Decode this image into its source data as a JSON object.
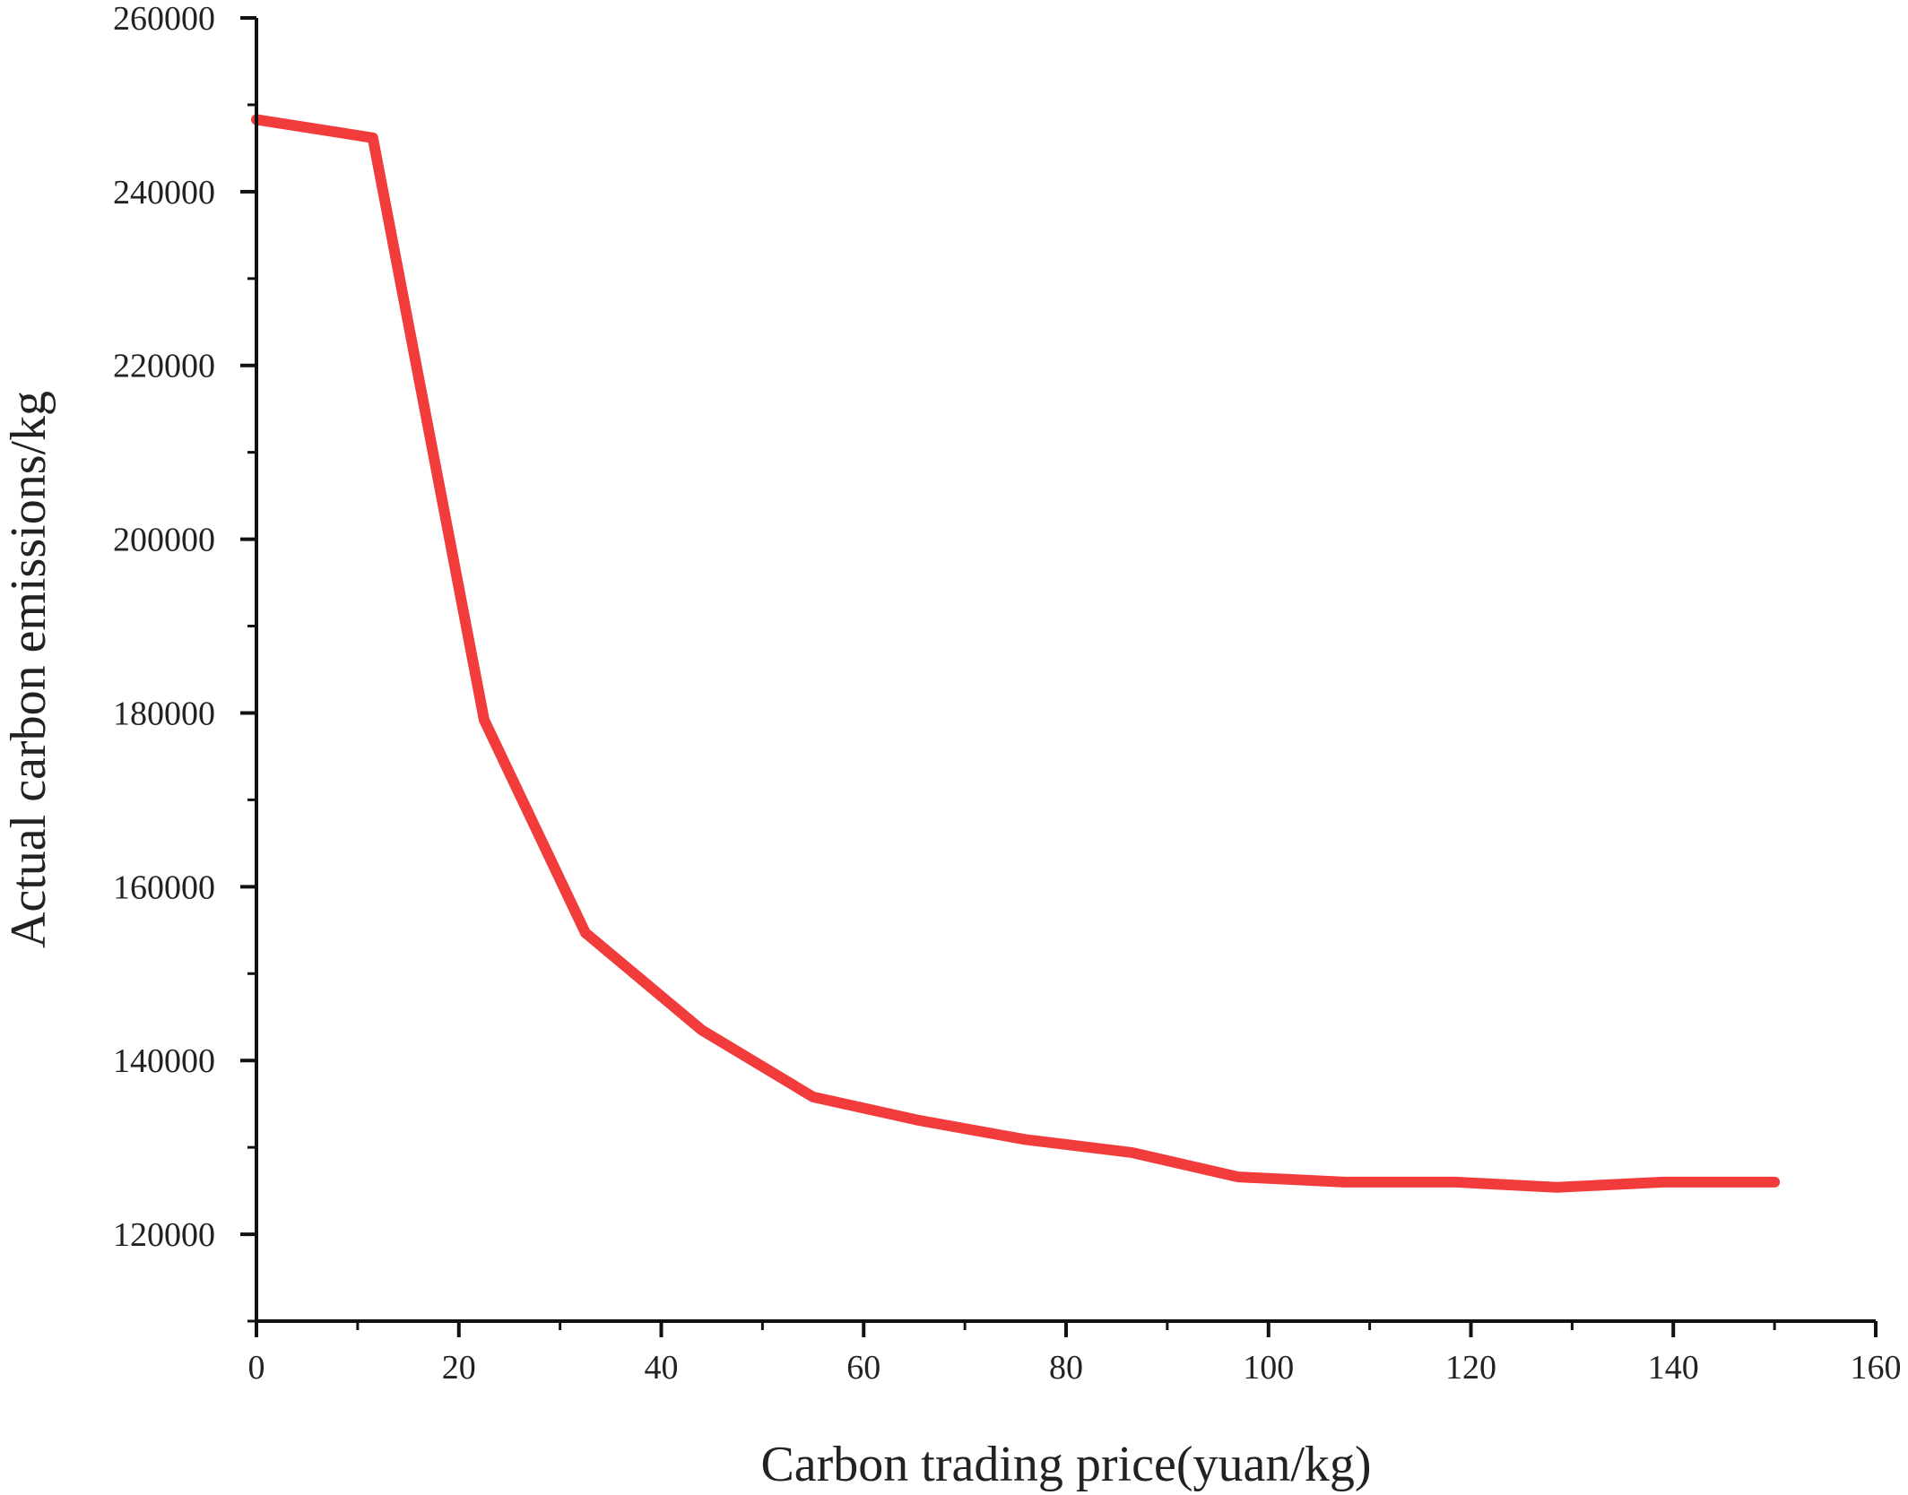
{
  "chart_data": {
    "type": "line",
    "title": "",
    "xlabel": "Carbon trading price(yuan/kg)",
    "ylabel": "Actual carbon emissions/kg",
    "xlim": [
      0,
      160
    ],
    "ylim": [
      110000,
      260000
    ],
    "x_major_ticks": [
      0,
      20,
      40,
      60,
      80,
      100,
      120,
      140,
      160
    ],
    "x_minor_ticks": [
      10,
      30,
      50,
      70,
      90,
      110,
      130,
      150
    ],
    "x_tick_labels": [
      "0",
      "20",
      "40",
      "60",
      "80",
      "100",
      "120",
      "140",
      "160"
    ],
    "y_major_ticks": [
      120000,
      140000,
      160000,
      180000,
      200000,
      220000,
      240000,
      260000
    ],
    "y_minor_ticks": [
      110000,
      130000,
      150000,
      170000,
      190000,
      210000,
      230000,
      250000
    ],
    "y_tick_labels": [
      "120000",
      "140000",
      "160000",
      "180000",
      "200000",
      "220000",
      "240000",
      "260000"
    ],
    "grid": false,
    "legend": "none",
    "series": [
      {
        "color": "#f23b3b",
        "x": [
          0,
          11.5,
          22.5,
          32.5,
          44,
          55,
          65.5,
          76,
          86.5,
          97,
          107.5,
          118.5,
          128.5,
          139,
          150
        ],
        "y": [
          248300,
          246200,
          179200,
          154700,
          143500,
          135800,
          133100,
          130900,
          129400,
          126600,
          126000,
          126000,
          125400,
          126000,
          126000
        ]
      }
    ]
  }
}
